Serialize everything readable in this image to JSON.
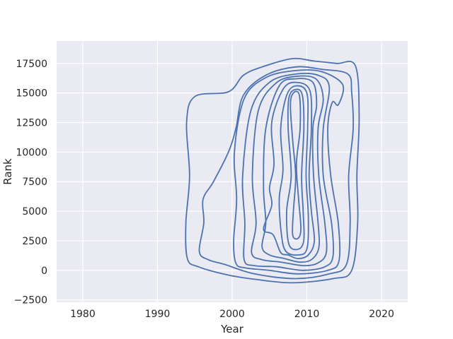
{
  "chart_data": {
    "type": "contour",
    "subtype": "kde-2d",
    "title": "",
    "xlabel": "Year",
    "ylabel": "Rank",
    "xlim": [
      1976.5,
      2023.5
    ],
    "ylim": [
      -2700,
      19400
    ],
    "xticks": [
      1980,
      1990,
      2000,
      2010,
      2020
    ],
    "yticks": [
      -2500,
      0,
      2500,
      5000,
      7500,
      10000,
      12500,
      15000,
      17500
    ],
    "xtick_labels": [
      "1980",
      "1990",
      "2000",
      "2010",
      "2020"
    ],
    "ytick_labels": [
      "−2500",
      "0",
      "2500",
      "5000",
      "7500",
      "10000",
      "12500",
      "15000",
      "17500"
    ],
    "grid": true,
    "background": "#EAEAF2",
    "line_color": "#4C72B0",
    "contours": [
      {
        "level": 1,
        "points": [
          [
            1994,
            1000
          ],
          [
            1993.8,
            4000
          ],
          [
            1994.3,
            8000
          ],
          [
            1993.9,
            12500
          ],
          [
            1995,
            14700
          ],
          [
            1999.5,
            15100
          ],
          [
            2001.5,
            16500
          ],
          [
            2004,
            17200
          ],
          [
            2008,
            17900
          ],
          [
            2011,
            17700
          ],
          [
            2014,
            17500
          ],
          [
            2016.5,
            17300
          ],
          [
            2017,
            13000
          ],
          [
            2016.7,
            8000
          ],
          [
            2016.8,
            4000
          ],
          [
            2016,
            0
          ],
          [
            2013.5,
            -700
          ],
          [
            2008,
            -1050
          ],
          [
            2003,
            -750
          ],
          [
            1999.5,
            -400
          ],
          [
            1995.5,
            300
          ],
          [
            1994,
            1000
          ]
        ]
      },
      {
        "level": 2,
        "points": [
          [
            1995.6,
            1600
          ],
          [
            1996.2,
            4000
          ],
          [
            1996.1,
            6000
          ],
          [
            1997.5,
            7500
          ],
          [
            1999.5,
            10000
          ],
          [
            2000.5,
            12000
          ],
          [
            2001.5,
            14800
          ],
          [
            2004.5,
            16500
          ],
          [
            2008.5,
            17200
          ],
          [
            2012,
            17000
          ],
          [
            2015.5,
            16600
          ],
          [
            2016,
            15000
          ],
          [
            2016.2,
            12000
          ],
          [
            2015.6,
            8000
          ],
          [
            2015.8,
            4000
          ],
          [
            2015.3,
            500
          ],
          [
            2013,
            -300
          ],
          [
            2008.5,
            -700
          ],
          [
            2003,
            -300
          ],
          [
            1999,
            500
          ],
          [
            1996.8,
            900
          ],
          [
            1995.6,
            1600
          ]
        ]
      },
      {
        "level": 3,
        "points": [
          [
            2000.5,
            600
          ],
          [
            2000.2,
            2500
          ],
          [
            2000.6,
            6000
          ],
          [
            2000.3,
            10000
          ],
          [
            2001.6,
            14500
          ],
          [
            2004.5,
            16300
          ],
          [
            2008.5,
            16900
          ],
          [
            2012,
            16800
          ],
          [
            2014.8,
            15700
          ],
          [
            2014.2,
            14000
          ],
          [
            2013.4,
            14200
          ],
          [
            2012.8,
            12000
          ],
          [
            2013.2,
            8000
          ],
          [
            2014.2,
            4000
          ],
          [
            2014.3,
            800
          ],
          [
            2012.8,
            0
          ],
          [
            2008.8,
            -300
          ],
          [
            2005,
            0
          ],
          [
            2001.8,
            200
          ],
          [
            2000.5,
            600
          ]
        ]
      },
      {
        "level": 4,
        "points": [
          [
            2001.6,
            900
          ],
          [
            2001.7,
            4000
          ],
          [
            2001.4,
            8000
          ],
          [
            2002.5,
            13500
          ],
          [
            2005,
            15900
          ],
          [
            2008.5,
            16600
          ],
          [
            2011.5,
            16500
          ],
          [
            2013,
            15500
          ],
          [
            2012.2,
            12000
          ],
          [
            2012.2,
            8000
          ],
          [
            2013.3,
            4000
          ],
          [
            2013.5,
            1200
          ],
          [
            2012.4,
            300
          ],
          [
            2009.5,
            0
          ],
          [
            2006,
            300
          ],
          [
            2003,
            400
          ],
          [
            2001.6,
            900
          ]
        ]
      },
      {
        "level": 5,
        "points": [
          [
            2002.6,
            1500
          ],
          [
            2003.2,
            4000
          ],
          [
            2002.7,
            8000
          ],
          [
            2003.5,
            13500
          ],
          [
            2005.8,
            15800
          ],
          [
            2008.5,
            16400
          ],
          [
            2011.2,
            16200
          ],
          [
            2012.2,
            14500
          ],
          [
            2011.5,
            12000
          ],
          [
            2011.6,
            8000
          ],
          [
            2012.4,
            4000
          ],
          [
            2012.6,
            1500
          ],
          [
            2011.4,
            600
          ],
          [
            2009.5,
            400
          ],
          [
            2006.5,
            700
          ],
          [
            2004,
            900
          ],
          [
            2002.6,
            1500
          ]
        ]
      },
      {
        "level": 6,
        "points": [
          [
            2004,
            2000
          ],
          [
            2004.5,
            4000
          ],
          [
            2004.2,
            7000
          ],
          [
            2004.5,
            12000
          ],
          [
            2006.3,
            15600
          ],
          [
            2008.5,
            16200
          ],
          [
            2010.8,
            15900
          ],
          [
            2011.3,
            14000
          ],
          [
            2010.8,
            12000
          ],
          [
            2010.9,
            8000
          ],
          [
            2011.5,
            4000
          ],
          [
            2011.6,
            1900
          ],
          [
            2010.6,
            900
          ],
          [
            2009,
            700
          ],
          [
            2007,
            1000
          ],
          [
            2005,
            1300
          ],
          [
            2004,
            2000
          ]
        ]
      },
      {
        "level": 7,
        "points": [
          [
            2004.2,
            3500
          ],
          [
            2005.5,
            3000
          ],
          [
            2006.5,
            1500
          ],
          [
            2007.5,
            1300
          ],
          [
            2008.8,
            1000
          ],
          [
            2010.2,
            1300
          ],
          [
            2011,
            2500
          ],
          [
            2010.6,
            5000
          ],
          [
            2010.3,
            8000
          ],
          [
            2010.6,
            12000
          ],
          [
            2010.4,
            15200
          ],
          [
            2008.5,
            15900
          ],
          [
            2006.8,
            15300
          ],
          [
            2005.3,
            12500
          ],
          [
            2005.6,
            9000
          ],
          [
            2005,
            7000
          ],
          [
            2005.3,
            5500
          ],
          [
            2004.2,
            3500
          ]
        ]
      },
      {
        "level": 8,
        "points": [
          [
            2007.2,
            1600
          ],
          [
            2008.8,
            1300
          ],
          [
            2010,
            1800
          ],
          [
            2010.2,
            4500
          ],
          [
            2009.9,
            8000
          ],
          [
            2010.1,
            12000
          ],
          [
            2010,
            15000
          ],
          [
            2008.5,
            15600
          ],
          [
            2007.3,
            14800
          ],
          [
            2006.5,
            12000
          ],
          [
            2006.8,
            8500
          ],
          [
            2006.3,
            6000
          ],
          [
            2006.6,
            3000
          ],
          [
            2007.2,
            1600
          ]
        ]
      },
      {
        "level": 9,
        "points": [
          [
            2007.6,
            2200
          ],
          [
            2008.9,
            1800
          ],
          [
            2009.6,
            2600
          ],
          [
            2009.5,
            5000
          ],
          [
            2009.3,
            8000
          ],
          [
            2009.6,
            12000
          ],
          [
            2009.4,
            14800
          ],
          [
            2008.5,
            15300
          ],
          [
            2007.6,
            14600
          ],
          [
            2007.5,
            12000
          ],
          [
            2007.9,
            8000
          ],
          [
            2007.3,
            5000
          ],
          [
            2007.6,
            2200
          ]
        ]
      },
      {
        "level": 10,
        "points": [
          [
            2008.1,
            3000
          ],
          [
            2008.8,
            2700
          ],
          [
            2009.2,
            3500
          ],
          [
            2008.9,
            6000
          ],
          [
            2008.6,
            9000
          ],
          [
            2009.1,
            12000
          ],
          [
            2009,
            14800
          ],
          [
            2008.2,
            15000
          ],
          [
            2007.8,
            14000
          ],
          [
            2008.1,
            11000
          ],
          [
            2008.5,
            8000
          ],
          [
            2008.2,
            5000
          ],
          [
            2008.1,
            3000
          ]
        ]
      }
    ]
  }
}
